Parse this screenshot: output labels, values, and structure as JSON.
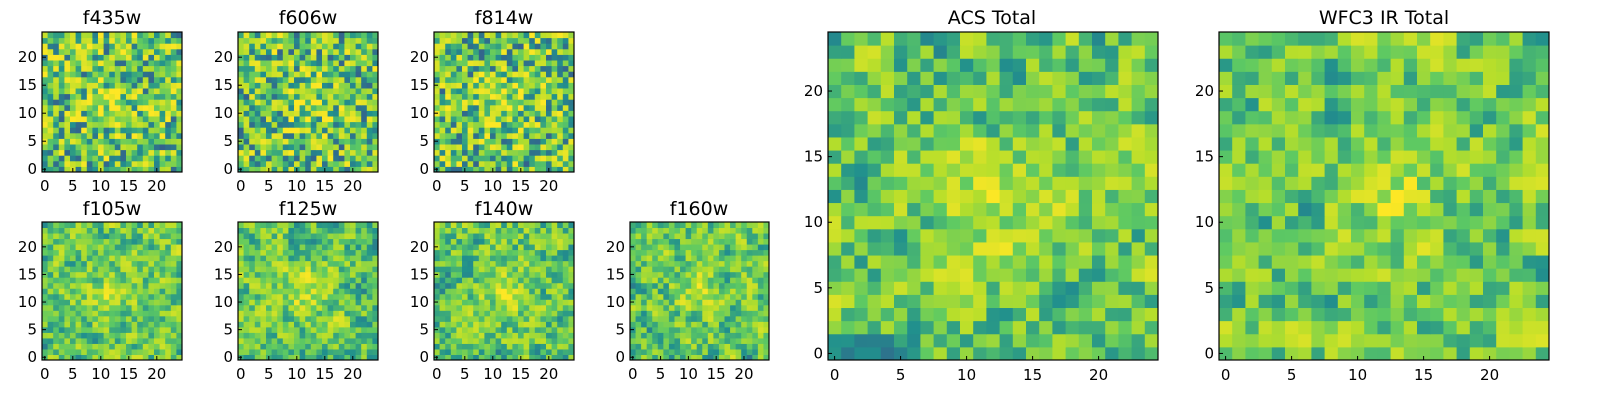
{
  "chart_data": [
    {
      "type": "heatmap",
      "title": "f435w",
      "xticks": [
        "0",
        "5",
        "10",
        "15",
        "20"
      ],
      "yticks": [
        "0",
        "5",
        "10",
        "15",
        "20"
      ],
      "xlim": [
        0,
        25
      ],
      "ylim": [
        0,
        25
      ],
      "colormap": "viridis",
      "seed": 11,
      "smooth": 0
    },
    {
      "type": "heatmap",
      "title": "f606w",
      "xticks": [
        "0",
        "5",
        "10",
        "15",
        "20"
      ],
      "yticks": [
        "0",
        "5",
        "10",
        "15",
        "20"
      ],
      "xlim": [
        0,
        25
      ],
      "ylim": [
        0,
        25
      ],
      "colormap": "viridis",
      "seed": 23,
      "smooth": 0
    },
    {
      "type": "heatmap",
      "title": "f814w",
      "xticks": [
        "0",
        "5",
        "10",
        "15",
        "20"
      ],
      "yticks": [
        "0",
        "5",
        "10",
        "15",
        "20"
      ],
      "xlim": [
        0,
        25
      ],
      "ylim": [
        0,
        25
      ],
      "colormap": "viridis",
      "seed": 37,
      "smooth": 0
    },
    {
      "type": "heatmap",
      "title": "f105w",
      "xticks": [
        "0",
        "5",
        "10",
        "15",
        "20"
      ],
      "yticks": [
        "0",
        "5",
        "10",
        "15",
        "20"
      ],
      "xlim": [
        0,
        25
      ],
      "ylim": [
        0,
        25
      ],
      "colormap": "viridis",
      "seed": 41,
      "smooth": 1
    },
    {
      "type": "heatmap",
      "title": "f125w",
      "xticks": [
        "0",
        "5",
        "10",
        "15",
        "20"
      ],
      "yticks": [
        "0",
        "5",
        "10",
        "15",
        "20"
      ],
      "xlim": [
        0,
        25
      ],
      "ylim": [
        0,
        25
      ],
      "colormap": "viridis",
      "seed": 53,
      "smooth": 1
    },
    {
      "type": "heatmap",
      "title": "f140w",
      "xticks": [
        "0",
        "5",
        "10",
        "15",
        "20"
      ],
      "yticks": [
        "0",
        "5",
        "10",
        "15",
        "20"
      ],
      "xlim": [
        0,
        25
      ],
      "ylim": [
        0,
        25
      ],
      "colormap": "viridis",
      "seed": 67,
      "smooth": 1
    },
    {
      "type": "heatmap",
      "title": "f160w",
      "xticks": [
        "0",
        "5",
        "10",
        "15",
        "20"
      ],
      "yticks": [
        "0",
        "5",
        "10",
        "15",
        "20"
      ],
      "xlim": [
        0,
        25
      ],
      "ylim": [
        0,
        25
      ],
      "colormap": "viridis",
      "seed": 79,
      "smooth": 1
    },
    {
      "type": "heatmap",
      "title": "ACS Total",
      "xticks": [
        "0",
        "5",
        "10",
        "15",
        "20"
      ],
      "yticks": [
        "0",
        "5",
        "10",
        "15",
        "20"
      ],
      "xlim": [
        0,
        25
      ],
      "ylim": [
        0,
        25
      ],
      "colormap": "viridis",
      "seed": 97,
      "smooth": 1
    },
    {
      "type": "heatmap",
      "title": "WFC3 IR Total",
      "xticks": [
        "0",
        "5",
        "10",
        "15",
        "20"
      ],
      "yticks": [
        "0",
        "5",
        "10",
        "15",
        "20"
      ],
      "xlim": [
        0,
        25
      ],
      "ylim": [
        0,
        25
      ],
      "colormap": "viridis",
      "seed": 103,
      "smooth": 1
    }
  ]
}
